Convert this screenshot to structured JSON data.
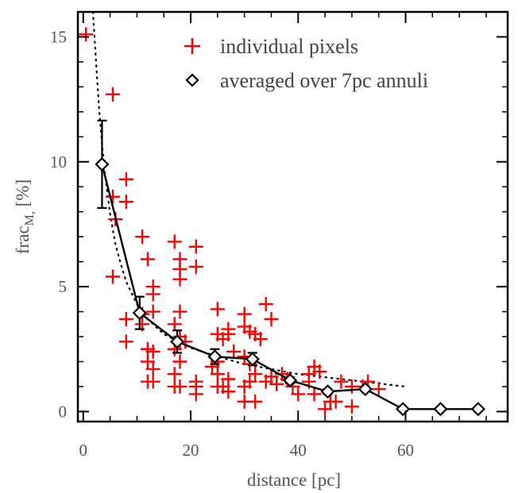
{
  "chart_data": {
    "type": "scatter",
    "title": "",
    "xlabel": "distance [pc]",
    "ylabel_main": "frac",
    "ylabel_sub": "M,",
    "ylabel_suffix": " [%]",
    "xlim": [
      -1,
      79
    ],
    "ylim": [
      -0.4,
      16
    ],
    "xticks": [
      0,
      20,
      40,
      60
    ],
    "yticks": [
      0,
      5,
      10,
      15
    ],
    "x_minor_step": 5,
    "y_minor_step": 1,
    "grid": false,
    "legend_position": "top-right",
    "colors": {
      "individual": "#ff0000",
      "averaged": "#000000",
      "fit": "#000000"
    },
    "series": [
      {
        "name": "individual pixels",
        "marker": "plus",
        "points": [
          [
            0.5,
            15.1
          ],
          [
            5.5,
            12.7
          ],
          [
            5.5,
            8.6
          ],
          [
            6,
            7.7
          ],
          [
            8,
            9.3
          ],
          [
            8,
            8.4
          ],
          [
            5.5,
            5.4
          ],
          [
            8,
            3.7
          ],
          [
            8,
            2.8
          ],
          [
            11,
            3.9
          ],
          [
            11,
            3.5
          ],
          [
            11,
            7.0
          ],
          [
            12,
            6.1
          ],
          [
            13,
            5.0
          ],
          [
            13,
            4.7
          ],
          [
            13,
            4.0
          ],
          [
            12,
            2.5
          ],
          [
            13,
            2.4
          ],
          [
            12,
            2.0
          ],
          [
            13,
            1.7
          ],
          [
            12,
            1.2
          ],
          [
            13,
            1.2
          ],
          [
            17,
            6.8
          ],
          [
            18,
            6.1
          ],
          [
            18,
            5.7
          ],
          [
            18,
            5.3
          ],
          [
            21,
            6.6
          ],
          [
            21,
            5.8
          ],
          [
            17,
            3.5
          ],
          [
            18,
            4.0
          ],
          [
            18,
            3.0
          ],
          [
            18,
            2.8
          ],
          [
            17,
            2.5
          ],
          [
            18,
            2.0
          ],
          [
            17,
            1.5
          ],
          [
            17,
            1.0
          ],
          [
            18,
            1.0
          ],
          [
            21,
            1.0
          ],
          [
            21,
            0.7
          ],
          [
            21,
            1.2
          ],
          [
            19,
            2.8
          ],
          [
            25,
            4.1
          ],
          [
            25,
            3.1
          ],
          [
            26,
            2.9
          ],
          [
            27,
            3.3
          ],
          [
            27,
            3.1
          ],
          [
            28,
            2.4
          ],
          [
            25,
            2.0
          ],
          [
            24,
            1.8
          ],
          [
            25,
            1.5
          ],
          [
            27,
            1.3
          ],
          [
            26,
            1.0
          ],
          [
            27,
            0.8
          ],
          [
            25,
            1.0
          ],
          [
            30,
            3.9
          ],
          [
            30,
            3.4
          ],
          [
            31,
            3.2
          ],
          [
            32,
            3.1
          ],
          [
            34,
            4.3
          ],
          [
            35,
            3.7
          ],
          [
            33,
            2.9
          ],
          [
            30,
            2.2
          ],
          [
            31,
            1.9
          ],
          [
            32,
            1.5
          ],
          [
            31,
            1.2
          ],
          [
            30,
            1.0
          ],
          [
            30,
            0.4
          ],
          [
            32,
            0.4
          ],
          [
            34,
            1.2
          ],
          [
            35,
            1.4
          ],
          [
            36,
            1.1
          ],
          [
            37,
            1.5
          ],
          [
            38,
            1.3
          ],
          [
            39,
            1.0
          ],
          [
            40,
            0.7
          ],
          [
            42,
            1.5
          ],
          [
            43,
            1.8
          ],
          [
            44,
            1.6
          ],
          [
            42,
            1.2
          ],
          [
            43,
            0.7
          ],
          [
            45,
            0.1
          ],
          [
            46,
            0.4
          ],
          [
            47,
            0.4
          ],
          [
            48,
            1.2
          ],
          [
            50,
            1.0
          ],
          [
            50,
            0.2
          ],
          [
            52,
            1.0
          ],
          [
            53,
            1.2
          ],
          [
            55,
            0.9
          ]
        ]
      },
      {
        "name": "averaged over 7pc annuli",
        "marker": "diamond",
        "x": [
          3.5,
          10.5,
          17.5,
          24.5,
          31.5,
          38.5,
          45.5,
          52.5,
          59.5,
          66.5,
          73.5
        ],
        "y": [
          9.9,
          3.95,
          2.8,
          2.2,
          2.1,
          1.25,
          0.8,
          0.9,
          0.1,
          0.1,
          0.1
        ],
        "yerr": [
          1.75,
          0.65,
          0.45,
          0.3,
          0.25,
          0.12,
          0.1,
          0.08,
          0,
          0,
          0
        ]
      }
    ],
    "fit_curve": {
      "style": "dotted",
      "x": [
        1.8,
        2.5,
        3,
        3.5,
        4,
        5,
        6,
        7,
        8,
        10,
        12,
        15,
        20,
        25,
        30,
        35,
        40,
        50,
        60
      ],
      "y": [
        16.0,
        13.6,
        12.0,
        10.7,
        9.6,
        7.9,
        6.7,
        5.9,
        5.2,
        4.3,
        3.7,
        3.1,
        2.55,
        2.2,
        1.9,
        1.7,
        1.5,
        1.25,
        1.0
      ]
    }
  }
}
